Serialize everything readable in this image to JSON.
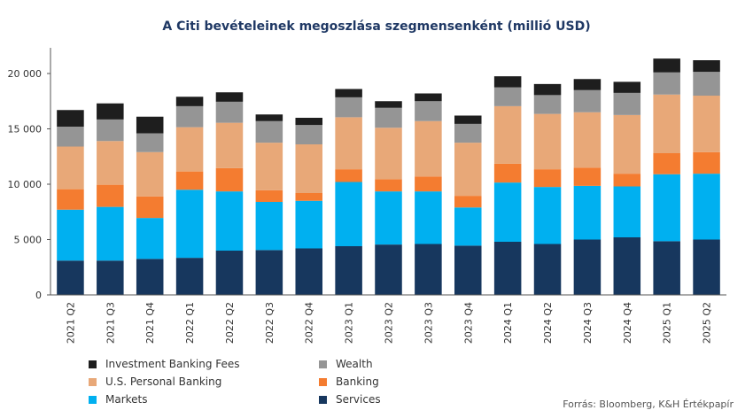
{
  "chart_data": {
    "type": "bar",
    "stacked": true,
    "title": "A Citi bevételeinek  megoszlása szegmensenként (millió USD)",
    "categories": [
      "2021 Q2",
      "2021 Q3",
      "2021 Q4",
      "2022 Q1",
      "2022 Q2",
      "2022 Q3",
      "2022 Q4",
      "2023 Q1",
      "2023 Q2",
      "2023 Q3",
      "2023 Q4",
      "2024 Q1",
      "2024 Q2",
      "2024 Q3",
      "2024 Q4",
      "2025 Q1",
      "2025 Q2"
    ],
    "ylim": [
      0,
      22000
    ],
    "yticks": [
      0,
      5000,
      10000,
      15000,
      20000
    ],
    "ytick_labels": [
      "0",
      "5 000",
      "10 000",
      "15 000",
      "20 000"
    ],
    "grid": false,
    "legend_position": "bottom",
    "series": [
      {
        "name": "Services",
        "color": "#17375e",
        "values": [
          3100,
          3100,
          3250,
          3350,
          4000,
          4050,
          4200,
          4400,
          4550,
          4600,
          4450,
          4800,
          4600,
          5000,
          5200,
          4850,
          5000
        ]
      },
      {
        "name": "Markets",
        "color": "#00b0f0",
        "values": [
          4600,
          4850,
          3700,
          6150,
          5350,
          4350,
          4300,
          5800,
          4800,
          4750,
          3450,
          5350,
          5150,
          4850,
          4600,
          6050,
          5950
        ]
      },
      {
        "name": "Banking",
        "color": "#f47c30",
        "values": [
          1850,
          2000,
          1950,
          1650,
          2100,
          1050,
          700,
          1150,
          1100,
          1350,
          1050,
          1700,
          1600,
          1650,
          1150,
          1900,
          1950
        ]
      },
      {
        "name": "U.S. Personal Banking",
        "color": "#e8a878",
        "values": [
          3850,
          3950,
          4000,
          4000,
          4100,
          4300,
          4400,
          4700,
          4650,
          5000,
          4800,
          5200,
          5000,
          5000,
          5300,
          5300,
          5100
        ]
      },
      {
        "name": "Wealth",
        "color": "#959595",
        "values": [
          1800,
          1950,
          1700,
          1900,
          1900,
          1950,
          1750,
          1800,
          1800,
          1800,
          1700,
          1700,
          1700,
          2000,
          2000,
          2000,
          2150
        ]
      },
      {
        "name": "Investment Banking Fees",
        "color": "#1e1e1e",
        "values": [
          1500,
          1450,
          1500,
          850,
          850,
          600,
          650,
          750,
          600,
          700,
          750,
          1000,
          1000,
          1000,
          1000,
          1250,
          1050
        ]
      }
    ]
  },
  "legend": {
    "investment_banking_fees": "Investment Banking Fees",
    "wealth": "Wealth",
    "us_personal_banking": "U.S. Personal Banking",
    "banking": "Banking",
    "markets": "Markets",
    "services": "Services"
  },
  "source": "Forrás: Bloomberg, K&H Értékpapír"
}
